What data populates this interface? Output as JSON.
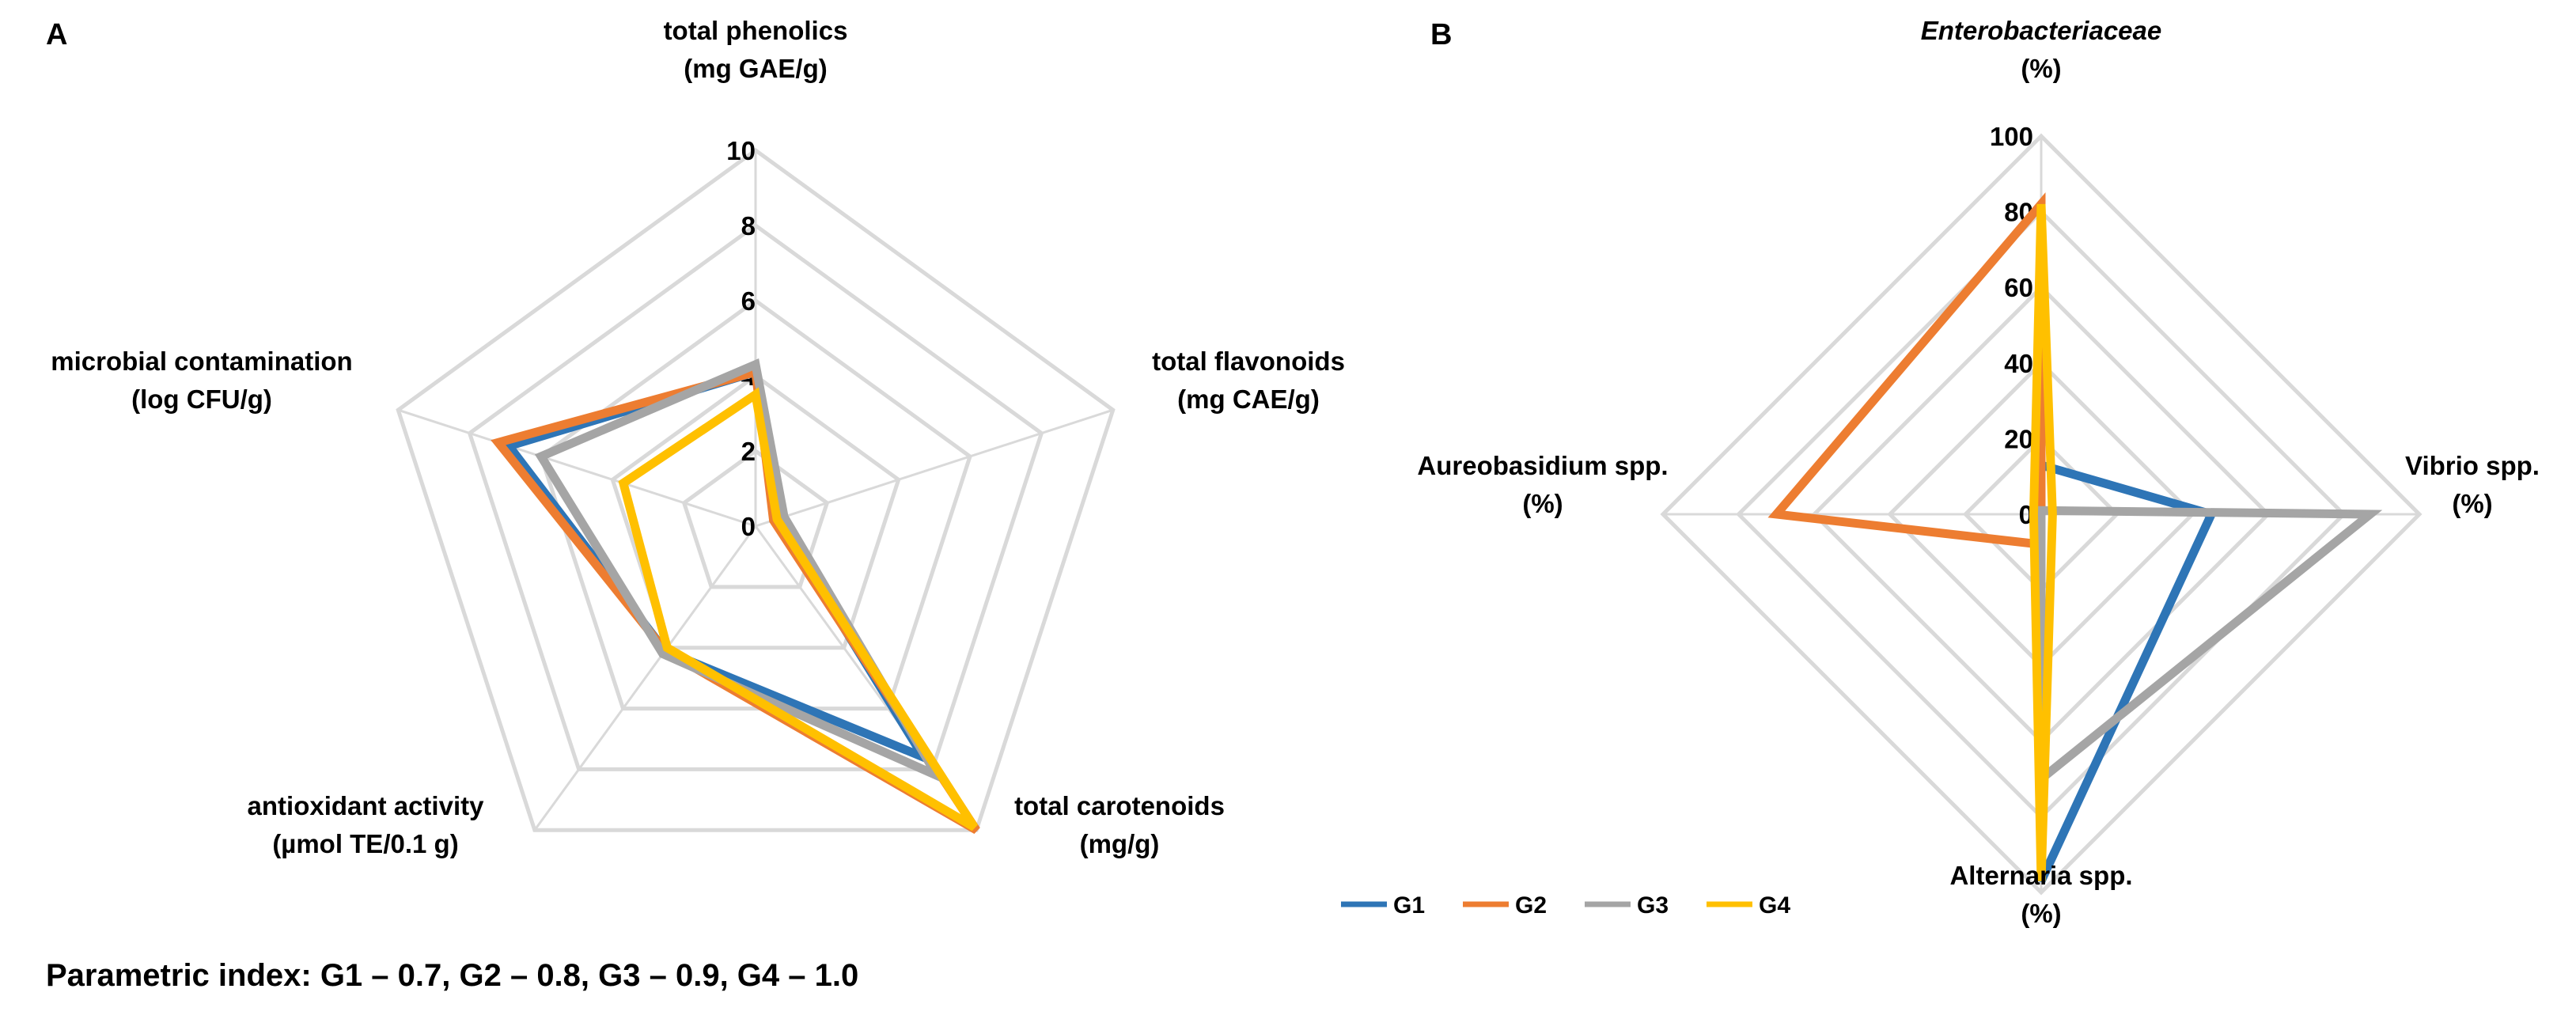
{
  "caption": "Parametric index: G1 – 0.7, G2 – 0.8, G3 – 0.9, G4 – 1.0",
  "series_colors": {
    "G1": "#2e75b6",
    "G2": "#ed7d31",
    "G3": "#a5a5a5",
    "G4": "#ffc000"
  },
  "legend": [
    "G1",
    "G2",
    "G3",
    "G4"
  ],
  "chart_data": [
    {
      "panel": "A",
      "type": "radar",
      "rlim": [
        0,
        10
      ],
      "ticks": [
        "0",
        "2",
        "4",
        "6",
        "8",
        "10"
      ],
      "tick_values": [
        0,
        2,
        4,
        6,
        8,
        10
      ],
      "axes": [
        {
          "line1": "total phenolics",
          "line2": "(mg GAE/g)"
        },
        {
          "line1": "total flavonoids",
          "line2": "(mg CAE/g)"
        },
        {
          "line1": "total carotenoids",
          "line2": "(mg/g)"
        },
        {
          "line1": "antioxidant activity",
          "line2": "(µmol TE/0.1 g)"
        },
        {
          "line1": "microbial contamination",
          "line2": "(log CFU/g)"
        }
      ],
      "series": [
        {
          "name": "G1",
          "values": [
            4.1,
            0.6,
            7.6,
            4.1,
            6.9
          ]
        },
        {
          "name": "G2",
          "values": [
            4.1,
            0.5,
            10.0,
            4.1,
            7.2
          ]
        },
        {
          "name": "G3",
          "values": [
            4.3,
            0.8,
            8.2,
            4.2,
            6.0
          ]
        },
        {
          "name": "G4",
          "values": [
            3.5,
            0.6,
            9.9,
            4.0,
            3.7
          ]
        }
      ]
    },
    {
      "panel": "B",
      "type": "radar",
      "rlim": [
        0,
        100
      ],
      "ticks": [
        "0",
        "20",
        "40",
        "60",
        "80",
        "100"
      ],
      "tick_values": [
        0,
        20,
        40,
        60,
        80,
        100
      ],
      "axes": [
        {
          "line1": "Enterobacteriaceae",
          "line2": "(%)"
        },
        {
          "line1": "Vibrio spp.",
          "line2": "(%)"
        },
        {
          "line1": "Alternaria spp.",
          "line2": "(%)"
        },
        {
          "line1": "Aureobasidium spp.",
          "line2": "(%)"
        }
      ],
      "series": [
        {
          "name": "G1",
          "values": [
            13,
            45,
            97,
            0
          ]
        },
        {
          "name": "G2",
          "values": [
            82,
            0,
            8,
            70
          ]
        },
        {
          "name": "G3",
          "values": [
            1,
            87,
            70,
            0
          ]
        },
        {
          "name": "G4",
          "values": [
            82,
            3,
            97,
            2
          ]
        }
      ]
    }
  ]
}
